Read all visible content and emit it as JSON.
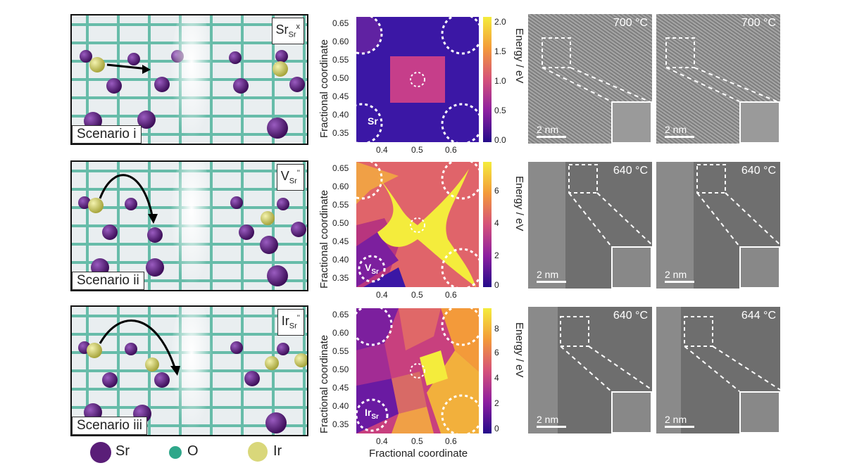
{
  "lattice_panels": [
    {
      "tag_main": "Sr",
      "tag_sub": "Sr",
      "tag_sup": "x",
      "scenario": "Scenario i"
    },
    {
      "tag_main": "V",
      "tag_sub": "Sr",
      "tag_sup": "''",
      "scenario": "Scenario ii"
    },
    {
      "tag_main": "Ir",
      "tag_sub": "Sr",
      "tag_sup": "''",
      "scenario": "Scenario iii"
    }
  ],
  "energy_maps": [
    {
      "ylabel": "Fractional coordinate",
      "cbar_label": "Energy / eV",
      "cbar_ticks": [
        "2.0",
        "1.5",
        "1.0",
        "0.5",
        "0.0"
      ],
      "corner_label": "Sr",
      "corner_sub": ""
    },
    {
      "ylabel": "Fractional coordinate",
      "cbar_label": "Energy / eV",
      "cbar_ticks": [
        "6",
        "4",
        "2",
        "0"
      ],
      "corner_label": "V",
      "corner_sub": "Sr"
    },
    {
      "ylabel": "Fractional coordinate",
      "cbar_label": "Energy / eV",
      "cbar_ticks": [
        "8",
        "6",
        "4",
        "2",
        "0"
      ],
      "corner_label": "Ir",
      "corner_sub": "Sr"
    }
  ],
  "y_ticks": [
    "0.65",
    "0.60",
    "0.55",
    "0.50",
    "0.45",
    "0.40",
    "0.35"
  ],
  "x_ticks": [
    "0.4",
    "0.5",
    "0.6"
  ],
  "x_axis_label": "Fractional coordinate",
  "tem_images": [
    {
      "temp": "700 °C",
      "scale": "2 nm"
    },
    {
      "temp": "700 °C",
      "scale": "2 nm"
    },
    {
      "temp": "640 °C",
      "scale": "2 nm"
    },
    {
      "temp": "640 °C",
      "scale": "2 nm"
    },
    {
      "temp": "640 °C",
      "scale": "2 nm"
    },
    {
      "temp": "644 °C",
      "scale": "2 nm"
    }
  ],
  "legend": [
    {
      "label": "Sr",
      "color": "#5a1e78"
    },
    {
      "label": "O",
      "color": "#2fa78a"
    },
    {
      "label": "Ir",
      "color": "#d9d77a"
    }
  ]
}
